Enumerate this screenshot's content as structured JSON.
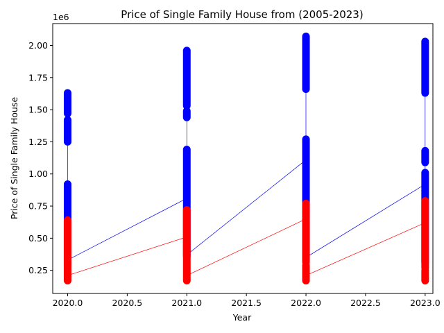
{
  "chart_data": {
    "type": "scatter",
    "title": "Price of Single Family House from (2005-2023)",
    "xlabel": "Year",
    "ylabel": "Price of Single Family House",
    "y_offset_label": "1e6",
    "xlim": [
      2019.875,
      2023.065
    ],
    "ylim": [
      0.07,
      2.17
    ],
    "x_ticks": [
      2020.0,
      2020.5,
      2021.0,
      2021.5,
      2022.0,
      2022.5,
      2023.0
    ],
    "x_tick_labels": [
      "2020.0",
      "2020.5",
      "2021.0",
      "2021.5",
      "2022.0",
      "2022.5",
      "2023.0"
    ],
    "y_ticks": [
      0.25,
      0.5,
      0.75,
      1.0,
      1.25,
      1.5,
      1.75,
      2.0
    ],
    "y_tick_labels": [
      "0.25",
      "0.50",
      "0.75",
      "1.00",
      "1.25",
      "1.50",
      "1.75",
      "2.00"
    ],
    "grid": false,
    "series": [
      {
        "color": "#0000ff",
        "points": [
          {
            "x": 2020,
            "ranges": [
              [
                0.29,
                0.92
              ],
              [
                1.25,
                1.42
              ],
              [
                1.47,
                1.63
              ]
            ]
          },
          {
            "x": 2021,
            "ranges": [
              [
                0.36,
                1.19
              ],
              [
                1.44,
                1.49
              ],
              [
                1.53,
                1.96
              ]
            ]
          },
          {
            "x": 2022,
            "ranges": [
              [
                0.33,
                1.27
              ],
              [
                1.66,
                2.07
              ]
            ]
          },
          {
            "x": 2023,
            "ranges": [
              [
                0.31,
                1.01
              ],
              [
                1.09,
                1.18
              ],
              [
                1.63,
                2.03
              ]
            ]
          }
        ],
        "line": [
          [
            2020,
            0.33
          ],
          [
            2020,
            1.42
          ],
          [
            2020,
            0.33
          ],
          [
            2021,
            0.81
          ],
          [
            2021,
            1.96
          ],
          [
            2021,
            0.37
          ],
          [
            2022,
            1.11
          ],
          [
            2022,
            2.07
          ],
          [
            2022,
            0.35
          ],
          [
            2023,
            0.92
          ],
          [
            2023,
            2.03
          ]
        ]
      },
      {
        "color": "#ff0000",
        "points": [
          {
            "x": 2020,
            "ranges": [
              [
                0.17,
                0.64
              ]
            ]
          },
          {
            "x": 2021,
            "ranges": [
              [
                0.17,
                0.72
              ]
            ]
          },
          {
            "x": 2022,
            "ranges": [
              [
                0.17,
                0.29
              ],
              [
                0.31,
                0.77
              ]
            ]
          },
          {
            "x": 2023,
            "ranges": [
              [
                0.17,
                0.25
              ],
              [
                0.27,
                0.79
              ]
            ]
          }
        ],
        "line": [
          [
            2020,
            0.21
          ],
          [
            2021,
            0.51
          ],
          [
            2021,
            0.21
          ],
          [
            2022,
            0.65
          ],
          [
            2022,
            0.21
          ],
          [
            2023,
            0.62
          ]
        ]
      }
    ]
  }
}
